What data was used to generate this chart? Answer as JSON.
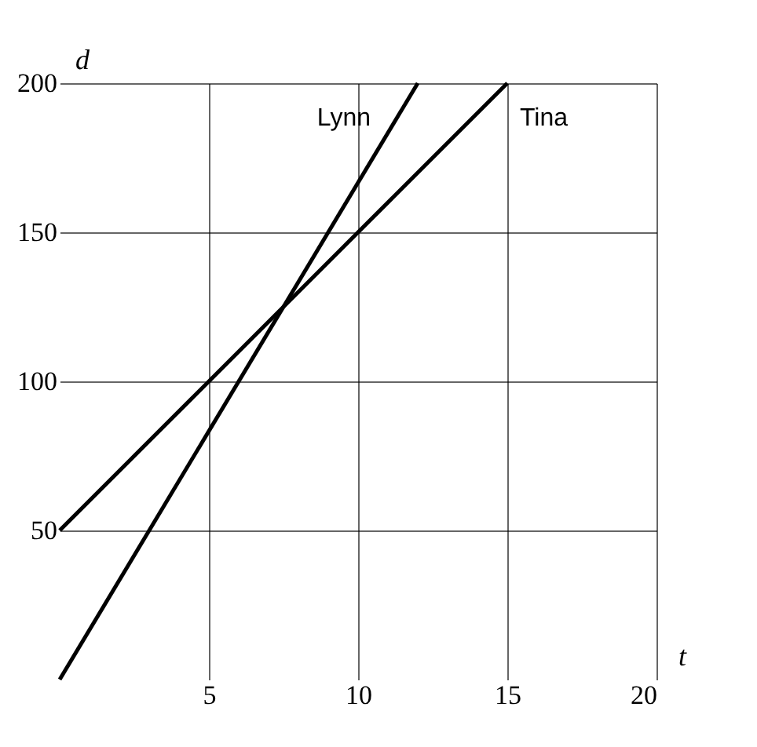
{
  "chart_data": {
    "type": "line",
    "xlabel": "t",
    "ylabel": "d",
    "xlim": [
      0,
      20
    ],
    "ylim": [
      0,
      200
    ],
    "xticks": [
      5,
      10,
      15,
      20
    ],
    "yticks": [
      50,
      100,
      150,
      200
    ],
    "grid": true,
    "marker": "none",
    "line_style": "solid",
    "series": [
      {
        "name": "Lynn",
        "color": "#000000",
        "x": [
          0,
          12
        ],
        "values": [
          0,
          200
        ]
      },
      {
        "name": "Tina",
        "color": "#000000",
        "x": [
          0,
          15
        ],
        "values": [
          50,
          200
        ]
      }
    ]
  }
}
